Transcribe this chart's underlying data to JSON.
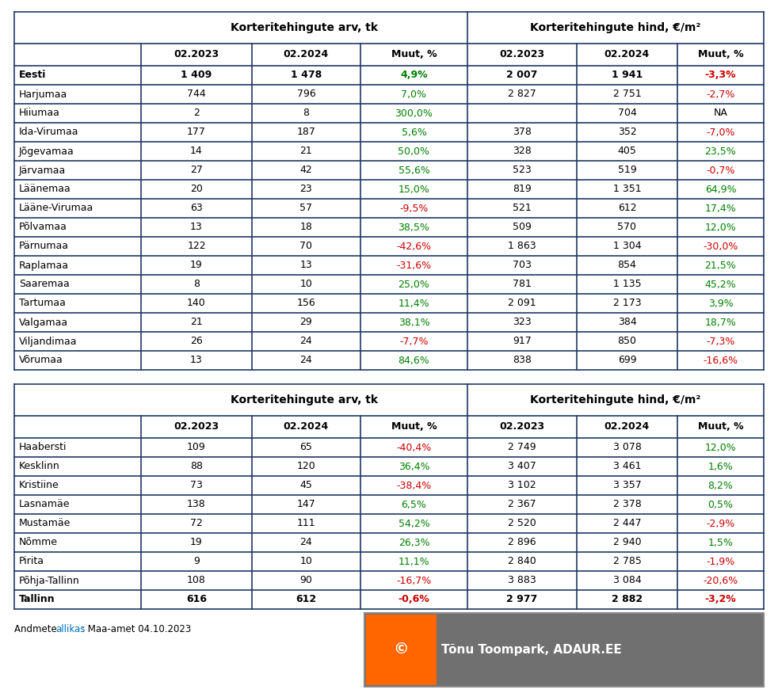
{
  "table1": {
    "header1": "Korteritehingute arv, tk",
    "header2": "Korteritehingute hind, €/m²",
    "col_headers": [
      "02.2023",
      "02.2024",
      "Muut, %",
      "02.2023",
      "02.2024",
      "Muut, %"
    ],
    "rows": [
      {
        "name": "Eesti",
        "bold": true,
        "arv1": "1 409",
        "arv2": "1 478",
        "arv_muut": "4,9%",
        "arv_muut_color": "green",
        "hind1": "2 007",
        "hind2": "1 941",
        "hind_muut": "-3,3%",
        "hind_muut_color": "red"
      },
      {
        "name": "Harjumaa",
        "bold": false,
        "arv1": "744",
        "arv2": "796",
        "arv_muut": "7,0%",
        "arv_muut_color": "green",
        "hind1": "2 827",
        "hind2": "2 751",
        "hind_muut": "-2,7%",
        "hind_muut_color": "red"
      },
      {
        "name": "Hiiumaa",
        "bold": false,
        "arv1": "2",
        "arv2": "8",
        "arv_muut": "300,0%",
        "arv_muut_color": "green",
        "hind1": "",
        "hind2": "704",
        "hind_muut": "NA",
        "hind_muut_color": "black"
      },
      {
        "name": "Ida-Virumaa",
        "bold": false,
        "arv1": "177",
        "arv2": "187",
        "arv_muut": "5,6%",
        "arv_muut_color": "green",
        "hind1": "378",
        "hind2": "352",
        "hind_muut": "-7,0%",
        "hind_muut_color": "red"
      },
      {
        "name": "Jõgevamaa",
        "bold": false,
        "arv1": "14",
        "arv2": "21",
        "arv_muut": "50,0%",
        "arv_muut_color": "green",
        "hind1": "328",
        "hind2": "405",
        "hind_muut": "23,5%",
        "hind_muut_color": "green"
      },
      {
        "name": "Järvamaa",
        "bold": false,
        "arv1": "27",
        "arv2": "42",
        "arv_muut": "55,6%",
        "arv_muut_color": "green",
        "hind1": "523",
        "hind2": "519",
        "hind_muut": "-0,7%",
        "hind_muut_color": "red"
      },
      {
        "name": "Läänemaa",
        "bold": false,
        "arv1": "20",
        "arv2": "23",
        "arv_muut": "15,0%",
        "arv_muut_color": "green",
        "hind1": "819",
        "hind2": "1 351",
        "hind_muut": "64,9%",
        "hind_muut_color": "green"
      },
      {
        "name": "Lääne-Virumaa",
        "bold": false,
        "arv1": "63",
        "arv2": "57",
        "arv_muut": "-9,5%",
        "arv_muut_color": "red",
        "hind1": "521",
        "hind2": "612",
        "hind_muut": "17,4%",
        "hind_muut_color": "green"
      },
      {
        "name": "Põlvamaa",
        "bold": false,
        "arv1": "13",
        "arv2": "18",
        "arv_muut": "38,5%",
        "arv_muut_color": "green",
        "hind1": "509",
        "hind2": "570",
        "hind_muut": "12,0%",
        "hind_muut_color": "green"
      },
      {
        "name": "Pärnumaa",
        "bold": false,
        "arv1": "122",
        "arv2": "70",
        "arv_muut": "-42,6%",
        "arv_muut_color": "red",
        "hind1": "1 863",
        "hind2": "1 304",
        "hind_muut": "-30,0%",
        "hind_muut_color": "red"
      },
      {
        "name": "Raplamaa",
        "bold": false,
        "arv1": "19",
        "arv2": "13",
        "arv_muut": "-31,6%",
        "arv_muut_color": "red",
        "hind1": "703",
        "hind2": "854",
        "hind_muut": "21,5%",
        "hind_muut_color": "green"
      },
      {
        "name": "Saaremaa",
        "bold": false,
        "arv1": "8",
        "arv2": "10",
        "arv_muut": "25,0%",
        "arv_muut_color": "green",
        "hind1": "781",
        "hind2": "1 135",
        "hind_muut": "45,2%",
        "hind_muut_color": "green"
      },
      {
        "name": "Tartumaa",
        "bold": false,
        "arv1": "140",
        "arv2": "156",
        "arv_muut": "11,4%",
        "arv_muut_color": "green",
        "hind1": "2 091",
        "hind2": "2 173",
        "hind_muut": "3,9%",
        "hind_muut_color": "green"
      },
      {
        "name": "Valgamaa",
        "bold": false,
        "arv1": "21",
        "arv2": "29",
        "arv_muut": "38,1%",
        "arv_muut_color": "green",
        "hind1": "323",
        "hind2": "384",
        "hind_muut": "18,7%",
        "hind_muut_color": "green"
      },
      {
        "name": "Viljandimaa",
        "bold": false,
        "arv1": "26",
        "arv2": "24",
        "arv_muut": "-7,7%",
        "arv_muut_color": "red",
        "hind1": "917",
        "hind2": "850",
        "hind_muut": "-7,3%",
        "hind_muut_color": "red"
      },
      {
        "name": "Võrumaa",
        "bold": false,
        "arv1": "13",
        "arv2": "24",
        "arv_muut": "84,6%",
        "arv_muut_color": "green",
        "hind1": "838",
        "hind2": "699",
        "hind_muut": "-16,6%",
        "hind_muut_color": "red"
      }
    ]
  },
  "table2": {
    "header1": "Korteritehingute arv, tk",
    "header2": "Korteritehingute hind, €/m²",
    "col_headers": [
      "02.2023",
      "02.2024",
      "Muut, %",
      "02.2023",
      "02.2024",
      "Muut, %"
    ],
    "rows": [
      {
        "name": "Haabersti",
        "bold": false,
        "arv1": "109",
        "arv2": "65",
        "arv_muut": "-40,4%",
        "arv_muut_color": "red",
        "hind1": "2 749",
        "hind2": "3 078",
        "hind_muut": "12,0%",
        "hind_muut_color": "green"
      },
      {
        "name": "Kesklinn",
        "bold": false,
        "arv1": "88",
        "arv2": "120",
        "arv_muut": "36,4%",
        "arv_muut_color": "green",
        "hind1": "3 407",
        "hind2": "3 461",
        "hind_muut": "1,6%",
        "hind_muut_color": "green"
      },
      {
        "name": "Kristiine",
        "bold": false,
        "arv1": "73",
        "arv2": "45",
        "arv_muut": "-38,4%",
        "arv_muut_color": "red",
        "hind1": "3 102",
        "hind2": "3 357",
        "hind_muut": "8,2%",
        "hind_muut_color": "green"
      },
      {
        "name": "Lasnamäe",
        "bold": false,
        "arv1": "138",
        "arv2": "147",
        "arv_muut": "6,5%",
        "arv_muut_color": "green",
        "hind1": "2 367",
        "hind2": "2 378",
        "hind_muut": "0,5%",
        "hind_muut_color": "green"
      },
      {
        "name": "Mustamäe",
        "bold": false,
        "arv1": "72",
        "arv2": "111",
        "arv_muut": "54,2%",
        "arv_muut_color": "green",
        "hind1": "2 520",
        "hind2": "2 447",
        "hind_muut": "-2,9%",
        "hind_muut_color": "red"
      },
      {
        "name": "Nõmme",
        "bold": false,
        "arv1": "19",
        "arv2": "24",
        "arv_muut": "26,3%",
        "arv_muut_color": "green",
        "hind1": "2 896",
        "hind2": "2 940",
        "hind_muut": "1,5%",
        "hind_muut_color": "green"
      },
      {
        "name": "Pirita",
        "bold": false,
        "arv1": "9",
        "arv2": "10",
        "arv_muut": "11,1%",
        "arv_muut_color": "green",
        "hind1": "2 840",
        "hind2": "2 785",
        "hind_muut": "-1,9%",
        "hind_muut_color": "red"
      },
      {
        "name": "Põhja-Tallinn",
        "bold": false,
        "arv1": "108",
        "arv2": "90",
        "arv_muut": "-16,7%",
        "arv_muut_color": "red",
        "hind1": "3 883",
        "hind2": "3 084",
        "hind_muut": "-20,6%",
        "hind_muut_color": "red"
      },
      {
        "name": "Tallinn",
        "bold": true,
        "arv1": "616",
        "arv2": "612",
        "arv_muut": "-0,6%",
        "arv_muut_color": "red",
        "hind1": "2 977",
        "hind2": "2 882",
        "hind_muut": "-3,2%",
        "hind_muut_color": "red"
      }
    ]
  },
  "footer_text": "Andmete allikas: Maa-amet 04.10.2023",
  "watermark_text": "Tõnu Toompark, ADAUR.EE",
  "border_color": "#1F3864",
  "green_color": "#008000",
  "red_color": "#CC0000",
  "black_color": "#000000",
  "watermark_bg": "#707070",
  "watermark_orange": "#FF6600",
  "footer_link_color": "#0070C0"
}
